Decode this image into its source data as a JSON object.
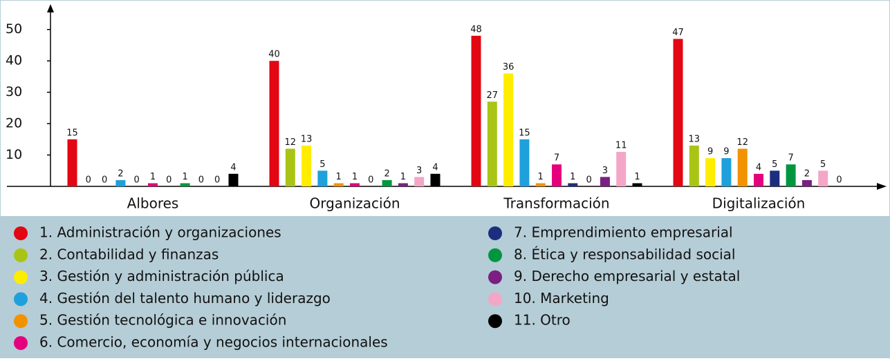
{
  "chart_data": {
    "type": "bar",
    "categories": [
      "Albores",
      "Organización",
      "Transformación",
      "Digitalización"
    ],
    "series": [
      {
        "name": "1. Administración y organizaciones",
        "color": "#e30613",
        "values": [
          15,
          40,
          48,
          47
        ]
      },
      {
        "name": "2. Contabilidad y finanzas",
        "color": "#a9c415",
        "values": [
          0,
          12,
          27,
          13
        ]
      },
      {
        "name": "3. Gestión y administración pública",
        "color": "#ffed00",
        "values": [
          0,
          13,
          36,
          9
        ]
      },
      {
        "name": "4. Gestión del talento humano y liderazgo",
        "color": "#1ea0dc",
        "values": [
          2,
          5,
          15,
          9
        ]
      },
      {
        "name": "5. Gestión tecnológica e innovación",
        "color": "#f39200",
        "values": [
          0,
          1,
          1,
          12
        ]
      },
      {
        "name": "6. Comercio, economía y negocios internacionales",
        "color": "#e5007e",
        "values": [
          1,
          1,
          7,
          4
        ]
      },
      {
        "name": "7. Emprendimiento empresarial",
        "color": "#1d2e7f",
        "values": [
          0,
          0,
          1,
          5
        ]
      },
      {
        "name": "8. Ética y responsabilidad social",
        "color": "#009640",
        "values": [
          1,
          2,
          0,
          7
        ]
      },
      {
        "name": "9. Derecho empresarial y estatal",
        "color": "#7b1f82",
        "values": [
          0,
          1,
          3,
          2
        ]
      },
      {
        "name": "10. Marketing",
        "color": "#f4a6c7",
        "values": [
          0,
          3,
          11,
          5
        ]
      },
      {
        "name": "11. Otro",
        "color": "#000000",
        "values": [
          4,
          4,
          1,
          0
        ]
      }
    ],
    "ylim": [
      0,
      55
    ],
    "yticks": [
      10,
      20,
      30,
      40,
      50
    ]
  }
}
